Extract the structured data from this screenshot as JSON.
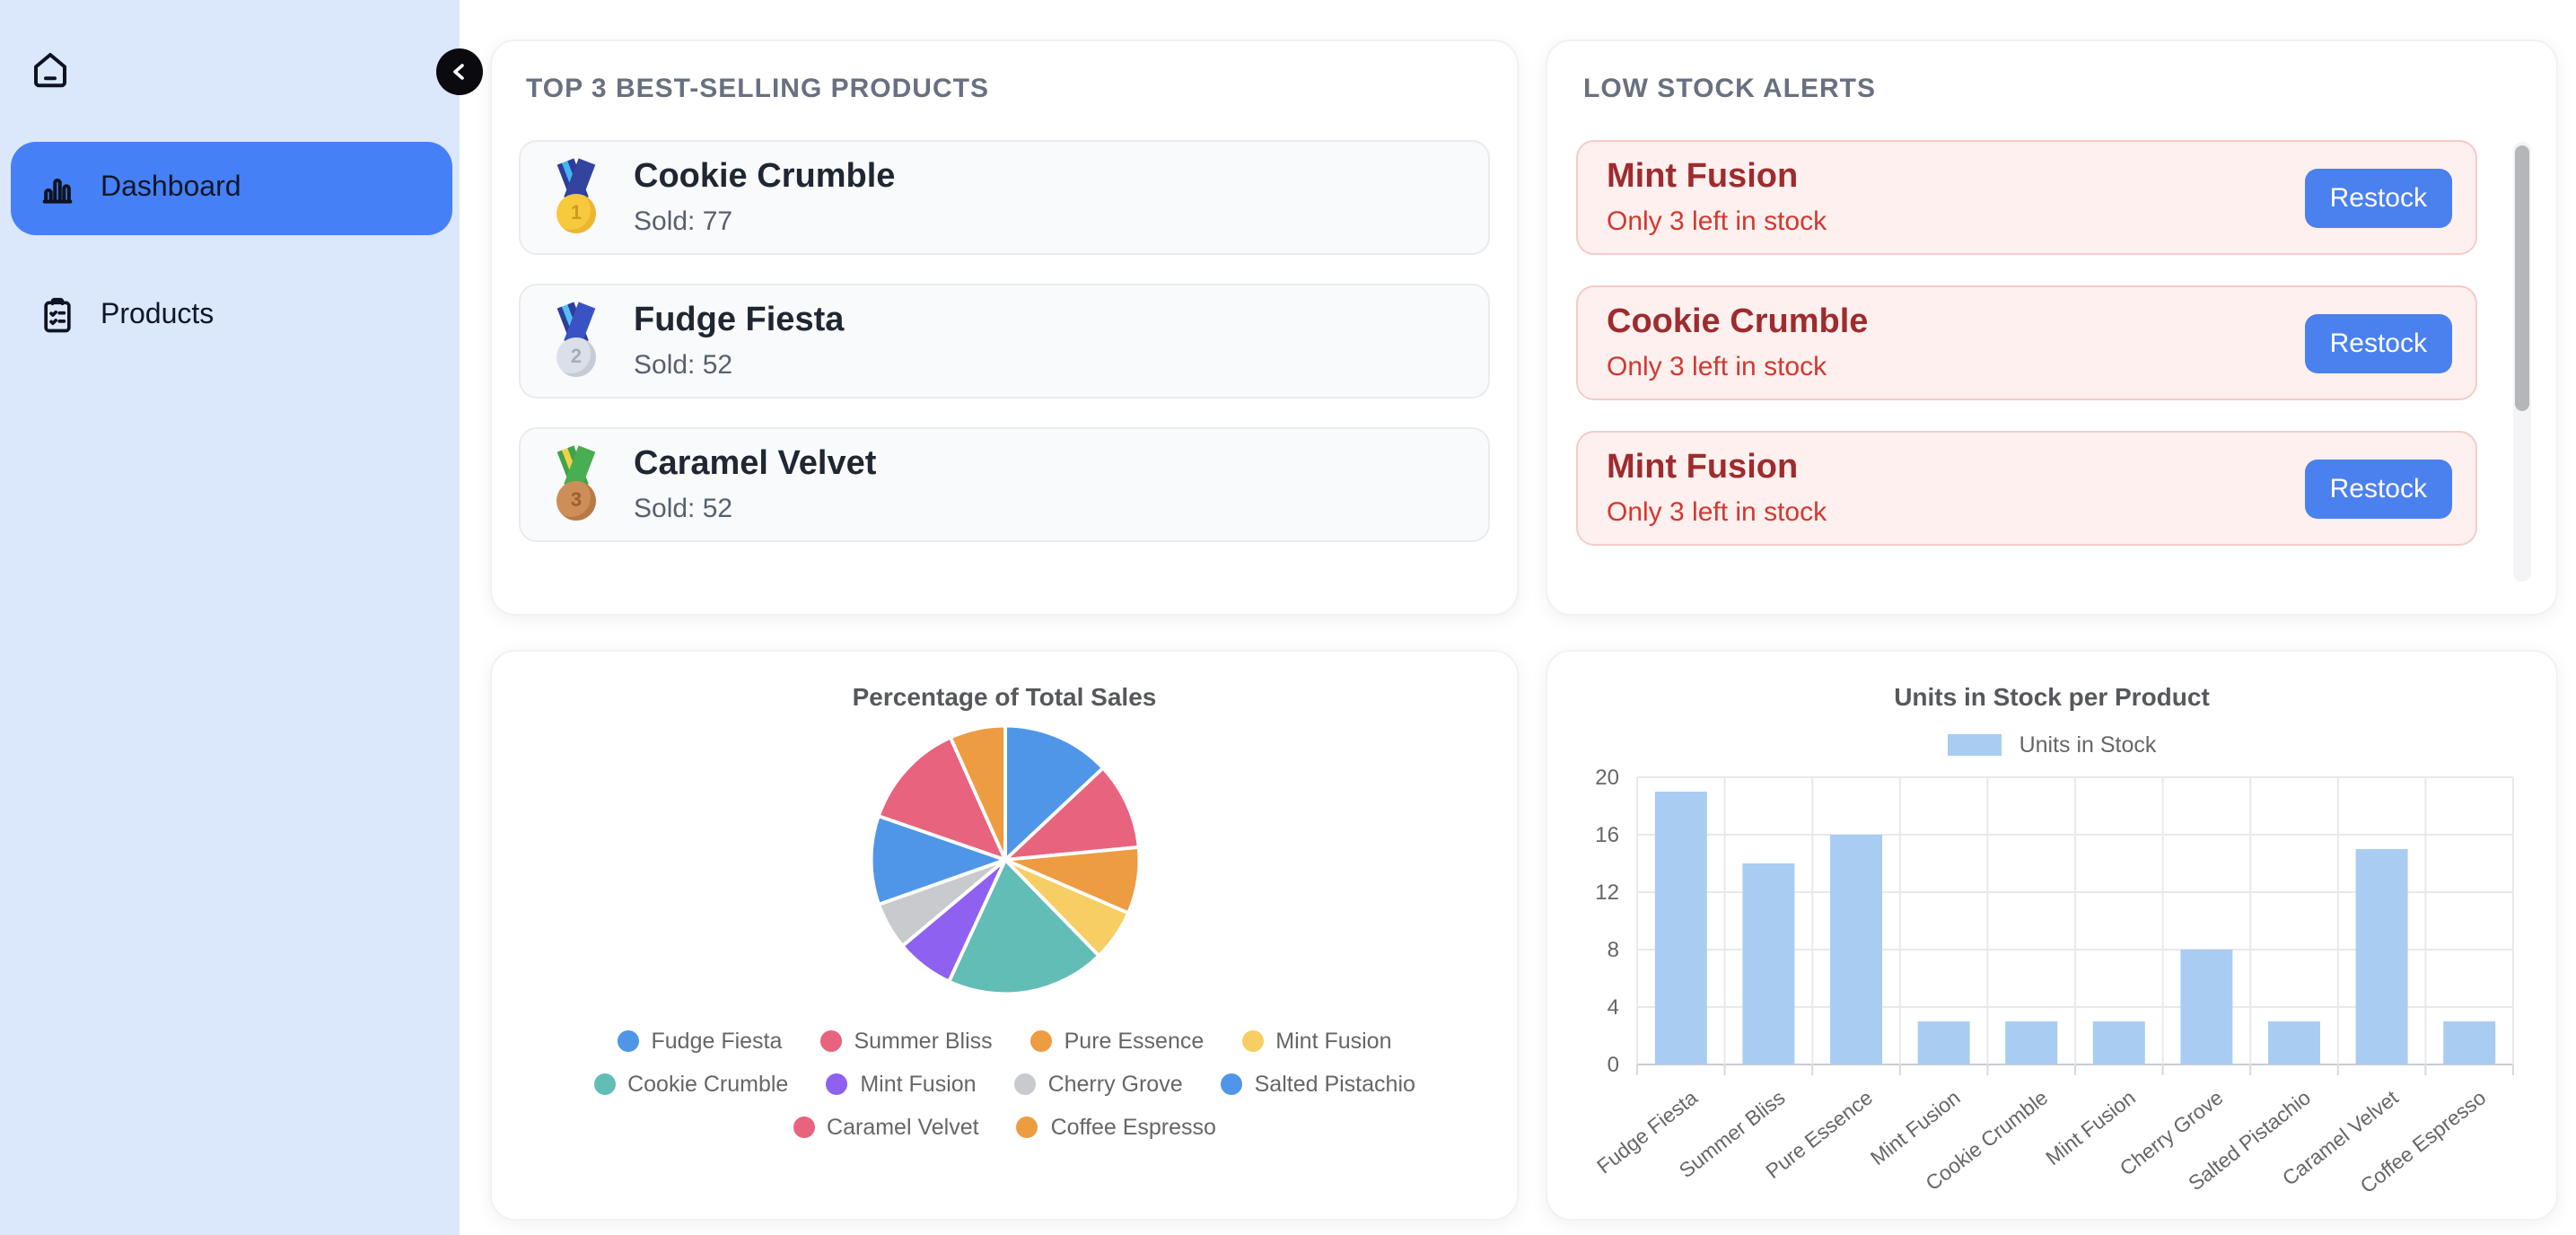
{
  "sidebar": {
    "items": [
      {
        "label": "Dashboard",
        "icon": "bar-chart-icon",
        "active": true
      },
      {
        "label": "Products",
        "icon": "clipboard-list-icon",
        "active": false
      }
    ]
  },
  "cards": {
    "top_products": {
      "title": "TOP 3 BEST-SELLING PRODUCTS",
      "items": [
        {
          "rank": 1,
          "name": "Cookie Crumble",
          "sold_label": "Sold: 77"
        },
        {
          "rank": 2,
          "name": "Fudge Fiesta",
          "sold_label": "Sold: 52"
        },
        {
          "rank": 3,
          "name": "Caramel Velvet",
          "sold_label": "Sold: 52"
        }
      ]
    },
    "low_stock": {
      "title": "LOW STOCK ALERTS",
      "alerts": [
        {
          "name": "Mint Fusion",
          "message": "Only 3 left in stock",
          "button_label": "Restock"
        },
        {
          "name": "Cookie Crumble",
          "message": "Only 3 left in stock",
          "button_label": "Restock"
        },
        {
          "name": "Mint Fusion",
          "message": "Only 3 left in stock",
          "button_label": "Restock"
        }
      ]
    }
  },
  "chart_data": [
    {
      "type": "pie",
      "title": "Percentage of Total Sales",
      "labels": [
        "Fudge Fiesta",
        "Summer Bliss",
        "Pure Essence",
        "Mint Fusion",
        "Cookie Crumble",
        "Mint Fusion",
        "Cherry Grove",
        "Salted Pistachio",
        "Caramel Velvet",
        "Coffee Espresso"
      ],
      "values": [
        13.0,
        10.5,
        8.0,
        6.2,
        19.2,
        7.0,
        5.7,
        10.7,
        13.0,
        6.7
      ],
      "unit": "percent",
      "colors": [
        "#4F96E8",
        "#E8637E",
        "#ED9C42",
        "#F6CE63",
        "#62BDB6",
        "#8F61F1",
        "#C8CACE",
        "#4F96E8",
        "#E8637E",
        "#ED9C42"
      ],
      "legend_position": "bottom"
    },
    {
      "type": "bar",
      "title": "Units in Stock per Product",
      "legend": [
        "Units in Stock"
      ],
      "categories": [
        "Fudge Fiesta",
        "Summer Bliss",
        "Pure Essence",
        "Mint Fusion",
        "Cookie Crumble",
        "Mint Fusion",
        "Cherry Grove",
        "Salted Pistachio",
        "Caramel Velvet",
        "Coffee Espresso"
      ],
      "values": [
        19,
        14,
        16,
        3,
        3,
        3,
        8,
        3,
        15,
        3
      ],
      "bar_color": "#A9CDF2",
      "ylim": [
        0,
        20
      ],
      "yticks": [
        0,
        4,
        8,
        12,
        16,
        20
      ],
      "x_label_rotation": -38,
      "grid": true
    }
  ],
  "theme": {
    "accent_blue": "#4680F7",
    "sidebar_bg": "#DBE7FB",
    "restock_blue": "#4B80EF",
    "alert_bg": "#FDF0EF",
    "alert_border": "#F5CBC8",
    "alert_title": "#9E2B2E",
    "alert_text": "#D2382F"
  }
}
